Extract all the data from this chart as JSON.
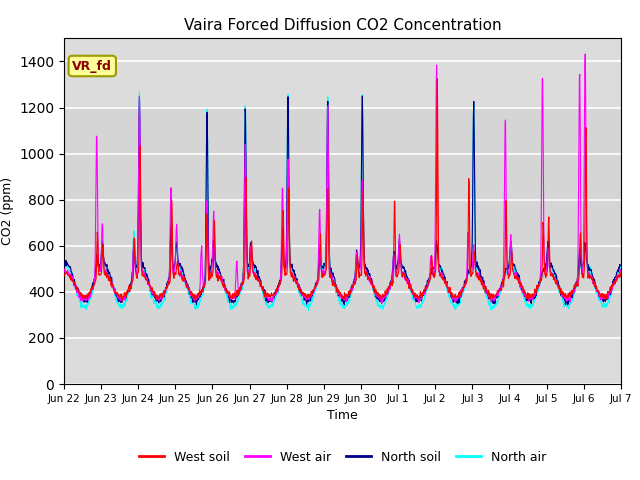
{
  "title": "Vaira Forced Diffusion CO2 Concentration",
  "xlabel": "Time",
  "ylabel": "CO2 (ppm)",
  "legend_label": "VR_fd",
  "ylim": [
    0,
    1500
  ],
  "yticks": [
    0,
    200,
    400,
    600,
    800,
    1000,
    1200,
    1400
  ],
  "x_tick_labels": [
    "Jun 22",
    "Jun 23",
    "Jun 24",
    "Jun 25",
    "Jun 26",
    "Jun 27",
    "Jun 28",
    "Jun 29",
    "Jun 30",
    "Jul 1",
    "Jul 2",
    "Jul 3",
    "Jul 4",
    "Jul 5",
    "Jul 6",
    "Jul 7"
  ],
  "colors": {
    "west_soil": "#ff0000",
    "west_air": "#ff00ff",
    "north_soil": "#00008b",
    "north_air": "#00ffff"
  },
  "plot_bg": "#dcdcdc",
  "legend_names": [
    "West soil",
    "West air",
    "North soil",
    "North air"
  ],
  "annotation_box_color": "#ffff99",
  "annotation_box_edge": "#999900",
  "annotation_text_color": "#8b0000",
  "n_days": 15,
  "n_per_day": 96
}
